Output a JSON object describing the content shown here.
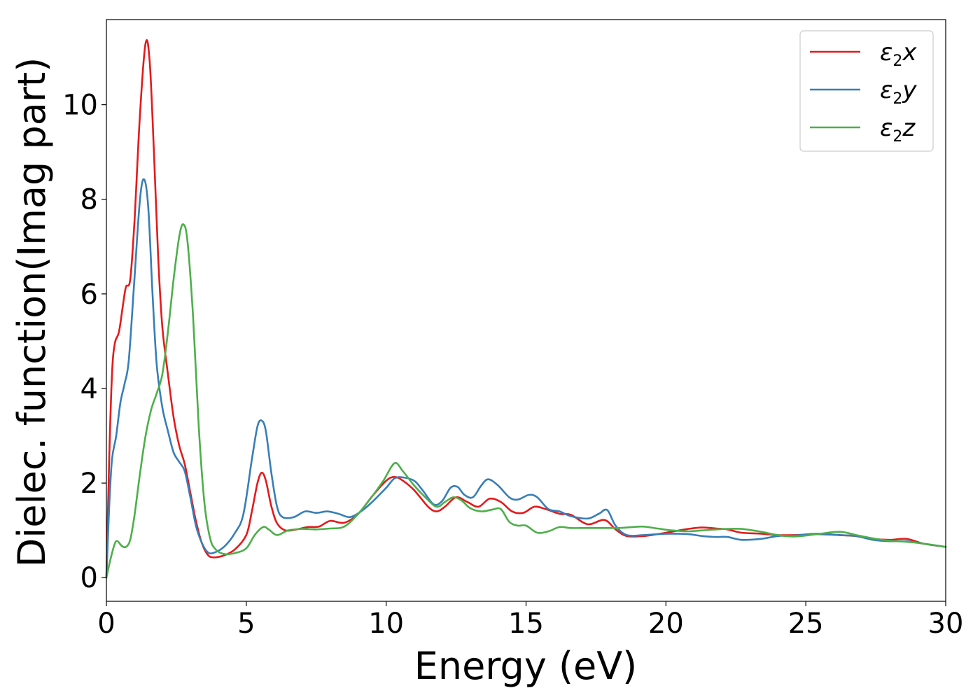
{
  "chart_data": {
    "type": "line",
    "xlabel": "Energy (eV)",
    "ylabel": "Dielec. function(Imag part)",
    "xlim": [
      0,
      30
    ],
    "ylim": [
      -0.5,
      11.8
    ],
    "xticks": [
      0,
      5,
      10,
      15,
      20,
      25,
      30
    ],
    "xtick_labels": [
      "0",
      "5",
      "10",
      "15",
      "20",
      "25",
      "30"
    ],
    "yticks": [
      0,
      2,
      4,
      6,
      8,
      10
    ],
    "ytick_labels": [
      "0",
      "2",
      "4",
      "6",
      "8",
      "10"
    ],
    "grid": false,
    "legend_position": "top-right",
    "series": [
      {
        "name": "ε2x",
        "legend_base": "ε",
        "legend_sub": "2",
        "legend_var": "x",
        "color": "#e41a1c",
        "points": [
          [
            0,
            0
          ],
          [
            0.1,
            2.5
          ],
          [
            0.2,
            4.3
          ],
          [
            0.3,
            4.95
          ],
          [
            0.45,
            5.2
          ],
          [
            0.6,
            5.8
          ],
          [
            0.7,
            6.15
          ],
          [
            0.85,
            6.3
          ],
          [
            1.0,
            7.5
          ],
          [
            1.2,
            9.8
          ],
          [
            1.4,
            11.3
          ],
          [
            1.55,
            10.9
          ],
          [
            1.7,
            9.0
          ],
          [
            1.85,
            6.8
          ],
          [
            2.0,
            5.3
          ],
          [
            2.2,
            4.3
          ],
          [
            2.4,
            3.4
          ],
          [
            2.6,
            2.8
          ],
          [
            2.8,
            2.4
          ],
          [
            3.0,
            1.8
          ],
          [
            3.2,
            1.2
          ],
          [
            3.4,
            0.75
          ],
          [
            3.6,
            0.5
          ],
          [
            3.8,
            0.43
          ],
          [
            4.2,
            0.47
          ],
          [
            4.6,
            0.6
          ],
          [
            5.0,
            0.9
          ],
          [
            5.2,
            1.4
          ],
          [
            5.4,
            2.0
          ],
          [
            5.55,
            2.22
          ],
          [
            5.7,
            2.05
          ],
          [
            5.9,
            1.5
          ],
          [
            6.1,
            1.15
          ],
          [
            6.4,
            1.0
          ],
          [
            6.8,
            1.02
          ],
          [
            7.2,
            1.07
          ],
          [
            7.6,
            1.08
          ],
          [
            8.0,
            1.2
          ],
          [
            8.5,
            1.16
          ],
          [
            9.0,
            1.35
          ],
          [
            9.5,
            1.72
          ],
          [
            10.0,
            2.05
          ],
          [
            10.3,
            2.13
          ],
          [
            10.6,
            2.05
          ],
          [
            11.0,
            1.85
          ],
          [
            11.5,
            1.5
          ],
          [
            11.8,
            1.4
          ],
          [
            12.1,
            1.5
          ],
          [
            12.5,
            1.7
          ],
          [
            12.9,
            1.6
          ],
          [
            13.3,
            1.5
          ],
          [
            13.7,
            1.67
          ],
          [
            14.1,
            1.6
          ],
          [
            14.5,
            1.4
          ],
          [
            14.9,
            1.37
          ],
          [
            15.3,
            1.5
          ],
          [
            15.7,
            1.45
          ],
          [
            16.2,
            1.35
          ],
          [
            16.6,
            1.33
          ],
          [
            17.2,
            1.13
          ],
          [
            17.8,
            1.22
          ],
          [
            18.2,
            1.02
          ],
          [
            18.6,
            0.88
          ],
          [
            19.2,
            0.88
          ],
          [
            19.7,
            0.92
          ],
          [
            20.2,
            0.97
          ],
          [
            20.8,
            1.03
          ],
          [
            21.3,
            1.06
          ],
          [
            21.8,
            1.04
          ],
          [
            22.2,
            1.02
          ],
          [
            22.7,
            0.95
          ],
          [
            23.4,
            0.93
          ],
          [
            24.0,
            0.9
          ],
          [
            24.6,
            0.9
          ],
          [
            25.4,
            0.92
          ],
          [
            26.2,
            0.9
          ],
          [
            26.8,
            0.88
          ],
          [
            27.4,
            0.82
          ],
          [
            28.0,
            0.8
          ],
          [
            28.6,
            0.82
          ],
          [
            29.2,
            0.72
          ],
          [
            30,
            0.65
          ]
        ]
      },
      {
        "name": "ε2y",
        "legend_base": "ε",
        "legend_sub": "2",
        "legend_var": "y",
        "color": "#377eb8",
        "points": [
          [
            0,
            0
          ],
          [
            0.1,
            1.5
          ],
          [
            0.2,
            2.5
          ],
          [
            0.35,
            3.0
          ],
          [
            0.5,
            3.7
          ],
          [
            0.65,
            4.1
          ],
          [
            0.8,
            4.6
          ],
          [
            1.0,
            6.3
          ],
          [
            1.2,
            8.0
          ],
          [
            1.35,
            8.42
          ],
          [
            1.5,
            7.8
          ],
          [
            1.65,
            6.0
          ],
          [
            1.8,
            4.5
          ],
          [
            2.0,
            3.6
          ],
          [
            2.2,
            3.1
          ],
          [
            2.4,
            2.65
          ],
          [
            2.6,
            2.45
          ],
          [
            2.8,
            2.25
          ],
          [
            3.0,
            1.7
          ],
          [
            3.2,
            1.1
          ],
          [
            3.4,
            0.75
          ],
          [
            3.6,
            0.55
          ],
          [
            3.8,
            0.52
          ],
          [
            4.2,
            0.65
          ],
          [
            4.6,
            0.95
          ],
          [
            4.9,
            1.35
          ],
          [
            5.2,
            2.5
          ],
          [
            5.4,
            3.2
          ],
          [
            5.55,
            3.32
          ],
          [
            5.7,
            3.1
          ],
          [
            5.9,
            2.2
          ],
          [
            6.1,
            1.5
          ],
          [
            6.3,
            1.28
          ],
          [
            6.7,
            1.28
          ],
          [
            7.1,
            1.4
          ],
          [
            7.5,
            1.37
          ],
          [
            7.9,
            1.4
          ],
          [
            8.3,
            1.35
          ],
          [
            8.7,
            1.28
          ],
          [
            9.1,
            1.4
          ],
          [
            9.5,
            1.6
          ],
          [
            10.0,
            1.9
          ],
          [
            10.3,
            2.1
          ],
          [
            10.6,
            2.12
          ],
          [
            11.0,
            2.05
          ],
          [
            11.3,
            1.85
          ],
          [
            11.7,
            1.55
          ],
          [
            12.0,
            1.62
          ],
          [
            12.3,
            1.9
          ],
          [
            12.55,
            1.92
          ],
          [
            12.8,
            1.75
          ],
          [
            13.1,
            1.7
          ],
          [
            13.4,
            1.95
          ],
          [
            13.65,
            2.08
          ],
          [
            14.0,
            1.95
          ],
          [
            14.4,
            1.7
          ],
          [
            14.7,
            1.65
          ],
          [
            15.1,
            1.75
          ],
          [
            15.4,
            1.7
          ],
          [
            15.8,
            1.45
          ],
          [
            16.2,
            1.4
          ],
          [
            16.6,
            1.3
          ],
          [
            17.2,
            1.25
          ],
          [
            17.6,
            1.35
          ],
          [
            17.9,
            1.43
          ],
          [
            18.2,
            1.1
          ],
          [
            18.6,
            0.9
          ],
          [
            19.2,
            0.9
          ],
          [
            19.7,
            0.92
          ],
          [
            20.2,
            0.93
          ],
          [
            20.8,
            0.92
          ],
          [
            21.3,
            0.88
          ],
          [
            21.8,
            0.86
          ],
          [
            22.2,
            0.86
          ],
          [
            22.7,
            0.8
          ],
          [
            23.4,
            0.82
          ],
          [
            24.0,
            0.88
          ],
          [
            24.6,
            0.89
          ],
          [
            25.4,
            0.93
          ],
          [
            26.2,
            0.9
          ],
          [
            26.8,
            0.88
          ],
          [
            27.4,
            0.8
          ],
          [
            28.0,
            0.77
          ],
          [
            28.6,
            0.77
          ],
          [
            29.2,
            0.72
          ],
          [
            30,
            0.65
          ]
        ]
      },
      {
        "name": "ε2z",
        "legend_base": "ε",
        "legend_sub": "2",
        "legend_var": "z",
        "color": "#4daf4a",
        "points": [
          [
            0,
            0
          ],
          [
            0.15,
            0.4
          ],
          [
            0.3,
            0.72
          ],
          [
            0.4,
            0.77
          ],
          [
            0.55,
            0.67
          ],
          [
            0.7,
            0.65
          ],
          [
            0.85,
            0.8
          ],
          [
            1.0,
            1.3
          ],
          [
            1.2,
            2.2
          ],
          [
            1.4,
            3.0
          ],
          [
            1.6,
            3.55
          ],
          [
            1.8,
            3.9
          ],
          [
            2.0,
            4.3
          ],
          [
            2.2,
            5.2
          ],
          [
            2.4,
            6.3
          ],
          [
            2.6,
            7.2
          ],
          [
            2.75,
            7.47
          ],
          [
            2.9,
            7.1
          ],
          [
            3.1,
            5.5
          ],
          [
            3.3,
            3.2
          ],
          [
            3.5,
            1.6
          ],
          [
            3.7,
            0.85
          ],
          [
            3.9,
            0.6
          ],
          [
            4.2,
            0.5
          ],
          [
            4.6,
            0.52
          ],
          [
            5.0,
            0.62
          ],
          [
            5.3,
            0.9
          ],
          [
            5.6,
            1.07
          ],
          [
            5.8,
            1.02
          ],
          [
            6.1,
            0.9
          ],
          [
            6.5,
            1.0
          ],
          [
            7.0,
            1.03
          ],
          [
            7.5,
            1.02
          ],
          [
            8.0,
            1.04
          ],
          [
            8.5,
            1.08
          ],
          [
            9.0,
            1.35
          ],
          [
            9.5,
            1.72
          ],
          [
            9.9,
            2.05
          ],
          [
            10.3,
            2.42
          ],
          [
            10.6,
            2.25
          ],
          [
            11.0,
            1.95
          ],
          [
            11.4,
            1.7
          ],
          [
            11.8,
            1.5
          ],
          [
            12.1,
            1.6
          ],
          [
            12.4,
            1.7
          ],
          [
            12.7,
            1.63
          ],
          [
            13.0,
            1.47
          ],
          [
            13.4,
            1.4
          ],
          [
            13.8,
            1.44
          ],
          [
            14.1,
            1.45
          ],
          [
            14.4,
            1.18
          ],
          [
            14.7,
            1.1
          ],
          [
            15.0,
            1.1
          ],
          [
            15.4,
            0.95
          ],
          [
            15.8,
            0.98
          ],
          [
            16.2,
            1.07
          ],
          [
            16.6,
            1.05
          ],
          [
            17.2,
            1.05
          ],
          [
            17.8,
            1.05
          ],
          [
            18.3,
            1.05
          ],
          [
            18.8,
            1.07
          ],
          [
            19.2,
            1.08
          ],
          [
            19.7,
            1.04
          ],
          [
            20.2,
            1.0
          ],
          [
            20.8,
            0.98
          ],
          [
            21.3,
            1.0
          ],
          [
            21.8,
            1.02
          ],
          [
            22.2,
            1.03
          ],
          [
            22.7,
            1.03
          ],
          [
            23.4,
            0.97
          ],
          [
            24.0,
            0.9
          ],
          [
            24.6,
            0.87
          ],
          [
            25.4,
            0.92
          ],
          [
            26.2,
            0.97
          ],
          [
            26.8,
            0.9
          ],
          [
            27.4,
            0.83
          ],
          [
            28.0,
            0.78
          ],
          [
            28.6,
            0.76
          ],
          [
            29.2,
            0.72
          ],
          [
            30,
            0.65
          ]
        ]
      }
    ]
  }
}
